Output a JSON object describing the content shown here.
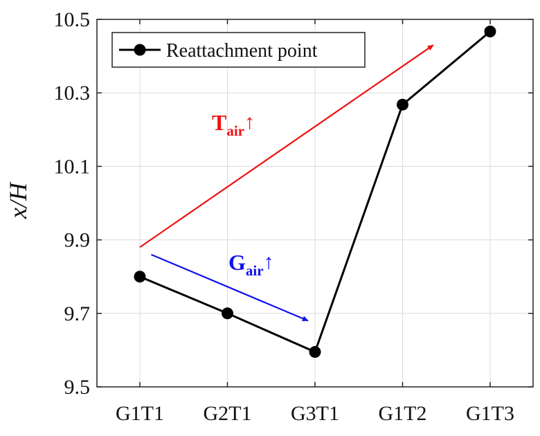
{
  "chart_data": {
    "type": "line",
    "categories": [
      "G1T1",
      "G2T1",
      "G3T1",
      "G1T2",
      "G1T3"
    ],
    "series": [
      {
        "name": "Reattachment point",
        "values": [
          9.8,
          9.7,
          9.595,
          10.268,
          10.467
        ],
        "color": "#000000"
      }
    ],
    "ylabel": "x/H",
    "xlabel": "",
    "ylim": [
      9.5,
      10.5
    ],
    "yticks": [
      "9.5",
      "9.7",
      "9.9",
      "10.1",
      "10.3",
      "10.5"
    ],
    "grid": true,
    "legend": "top-left",
    "annotations": [
      {
        "id": "tair",
        "main": "T",
        "sub": "air",
        "arrow": "↑",
        "color": "#ee1111",
        "from": {
          "x": 0,
          "y": 9.88
        },
        "to": {
          "x": 3.35,
          "y": 10.43
        }
      },
      {
        "id": "gair",
        "main": "G",
        "sub": "air",
        "arrow": "↑",
        "color": "#1111ee",
        "from": {
          "x": 0.13,
          "y": 9.86
        },
        "to": {
          "x": 1.92,
          "y": 9.68
        }
      }
    ]
  }
}
